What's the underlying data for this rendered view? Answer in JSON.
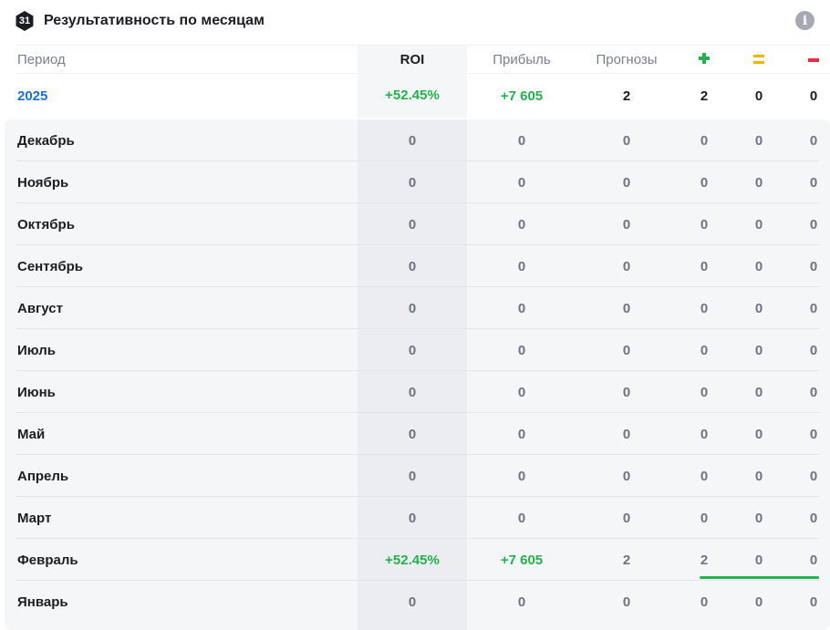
{
  "header": {
    "badge": "31",
    "title": "Результативность по месяцам",
    "info_icon": "info-icon"
  },
  "columns": {
    "period": "Период",
    "roi": "ROI",
    "profit": "Прибыль",
    "forecasts": "Прогнозы",
    "win_icon": "plus-icon",
    "draw_icon": "equals-icon",
    "loss_icon": "minus-icon"
  },
  "colors": {
    "positive": "#22b14c",
    "draw": "#f4b400",
    "negative": "#ee2a3f",
    "year": "#1a6fe0"
  },
  "year": {
    "label": "2025",
    "roi": "+52.45%",
    "profit": "+7 605",
    "forecasts": "2",
    "wins": "2",
    "draws": "0",
    "losses": "0"
  },
  "months": [
    {
      "label": "Декабрь",
      "roi": "0",
      "profit": "0",
      "forecasts": "0",
      "wins": "0",
      "draws": "0",
      "losses": "0"
    },
    {
      "label": "Ноябрь",
      "roi": "0",
      "profit": "0",
      "forecasts": "0",
      "wins": "0",
      "draws": "0",
      "losses": "0"
    },
    {
      "label": "Октябрь",
      "roi": "0",
      "profit": "0",
      "forecasts": "0",
      "wins": "0",
      "draws": "0",
      "losses": "0"
    },
    {
      "label": "Сентябрь",
      "roi": "0",
      "profit": "0",
      "forecasts": "0",
      "wins": "0",
      "draws": "0",
      "losses": "0"
    },
    {
      "label": "Август",
      "roi": "0",
      "profit": "0",
      "forecasts": "0",
      "wins": "0",
      "draws": "0",
      "losses": "0"
    },
    {
      "label": "Июль",
      "roi": "0",
      "profit": "0",
      "forecasts": "0",
      "wins": "0",
      "draws": "0",
      "losses": "0"
    },
    {
      "label": "Июнь",
      "roi": "0",
      "profit": "0",
      "forecasts": "0",
      "wins": "0",
      "draws": "0",
      "losses": "0"
    },
    {
      "label": "Май",
      "roi": "0",
      "profit": "0",
      "forecasts": "0",
      "wins": "0",
      "draws": "0",
      "losses": "0"
    },
    {
      "label": "Апрель",
      "roi": "0",
      "profit": "0",
      "forecasts": "0",
      "wins": "0",
      "draws": "0",
      "losses": "0"
    },
    {
      "label": "Март",
      "roi": "0",
      "profit": "0",
      "forecasts": "0",
      "wins": "0",
      "draws": "0",
      "losses": "0"
    },
    {
      "label": "Февраль",
      "roi": "+52.45%",
      "profit": "+7 605",
      "forecasts": "2",
      "wins": "2",
      "draws": "0",
      "losses": "0",
      "win_ratio": 1.0
    },
    {
      "label": "Январь",
      "roi": "0",
      "profit": "0",
      "forecasts": "0",
      "wins": "0",
      "draws": "0",
      "losses": "0"
    }
  ]
}
